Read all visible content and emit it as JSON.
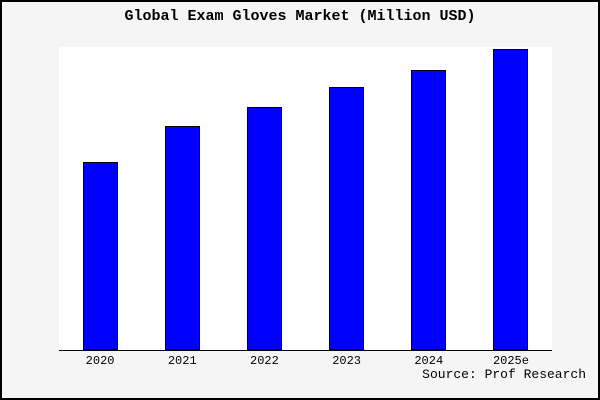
{
  "title": "Global Exam Gloves Market (Million USD)",
  "source_note": "Source: Prof Research",
  "colors": {
    "background": "#f5f5f5",
    "plot_background": "#ffffff",
    "bar_fill": "#0000ff",
    "bar_border": "#000000",
    "axis_line": "#000000",
    "frame_border": "#000000",
    "text": "#000000"
  },
  "chart_data": {
    "type": "bar",
    "title": "Global Exam Gloves Market (Million USD)",
    "categories": [
      "2020",
      "2021",
      "2022",
      "2023",
      "2024",
      "2025e"
    ],
    "values": [
      62.5,
      74.4,
      80.7,
      87.4,
      93.0,
      100.0
    ],
    "value_note": "Y-axis has no tick labels; values are relative estimates normalized to 2025e = 100",
    "xlabel": "",
    "ylabel": "",
    "ylim": [
      0,
      100
    ],
    "grid": false,
    "legend": false,
    "annotations": [
      "Source: Prof Research"
    ]
  }
}
